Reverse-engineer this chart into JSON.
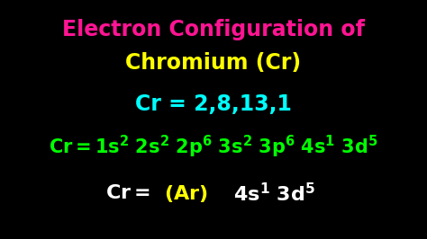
{
  "background_color": "#000000",
  "title_line1": "Electron Configuration of",
  "title_line2": "Chromium (Cr)",
  "title_line1_color": "#ff1493",
  "title_line2_color": "#ffff00",
  "title_fontsize": 17,
  "line2_text": "Cr = 2,8,13,1",
  "line2_color": "#00ffff",
  "line2_fontsize": 17,
  "line3_fontsize": 15,
  "line4_fontsize": 16,
  "fig_width": 4.74,
  "fig_height": 2.66,
  "dpi": 100
}
